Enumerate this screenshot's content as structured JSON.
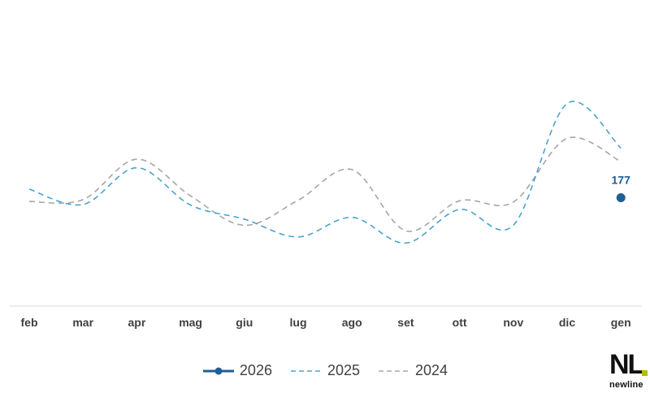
{
  "chart_data": {
    "type": "line",
    "title": "",
    "xlabel": "",
    "ylabel": "",
    "categories": [
      "feb",
      "mar",
      "apr",
      "mag",
      "giu",
      "lug",
      "ago",
      "set",
      "ott",
      "nov",
      "dic",
      "gen"
    ],
    "ylim": [
      0,
      500
    ],
    "grid": false,
    "legend_position": "bottom",
    "series": [
      {
        "name": "2026",
        "style": "solid-with-markers",
        "color": "#1f5e96",
        "values": [
          null,
          null,
          null,
          null,
          null,
          null,
          null,
          null,
          null,
          null,
          null,
          177
        ],
        "data_labels": [
          "",
          "",
          "",
          "",
          "",
          "",
          "",
          "",
          "",
          "",
          "",
          "177"
        ]
      },
      {
        "name": "2025",
        "style": "dashed",
        "color": "#4aa3cf",
        "values": [
          191,
          166,
          226,
          165,
          142,
          113,
          145,
          103,
          158,
          132,
          331,
          258
        ]
      },
      {
        "name": "2024",
        "style": "dashed",
        "color": "#a6a6a6",
        "values": [
          171,
          174,
          240,
          180,
          132,
          173,
          223,
          123,
          172,
          170,
          274,
          236
        ]
      }
    ]
  },
  "logo": {
    "letters": "NL",
    "wordmark": "newline",
    "accent_color": "#b5bd00"
  }
}
